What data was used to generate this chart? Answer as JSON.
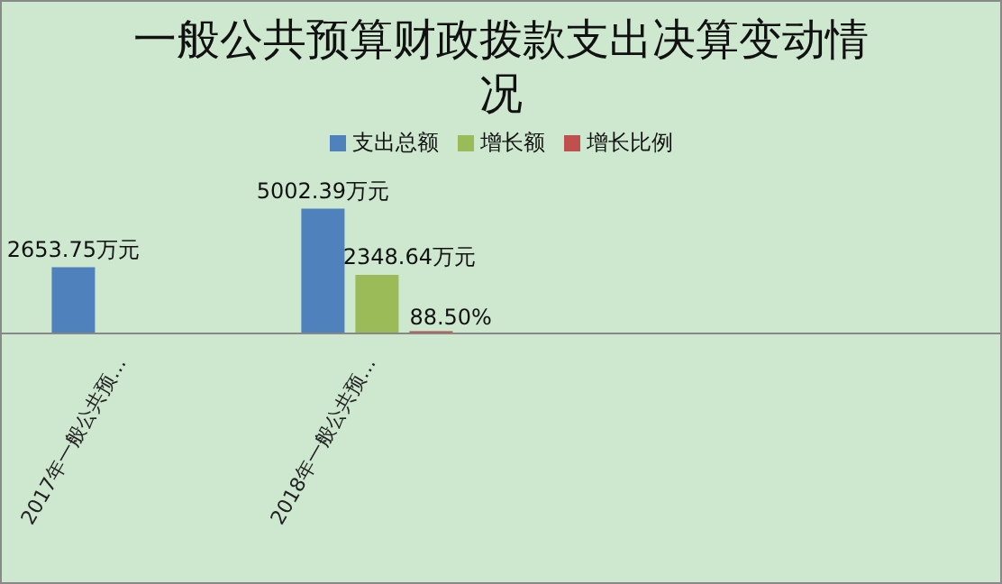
{
  "chart_data": {
    "type": "bar",
    "title": "一般公共预算财政拨款支出决算变动情况",
    "categories": [
      "2017年一般公共预…",
      "2018年一般公共预…",
      null,
      null
    ],
    "series": [
      {
        "name": "支出总额",
        "color": "#4f81bd",
        "values": [
          2653.75,
          5002.39,
          null,
          null
        ],
        "value_labels": [
          "2653.75万元",
          "5002.39万元",
          null,
          null
        ]
      },
      {
        "name": "增长额",
        "color": "#9bbb59",
        "values": [
          null,
          2348.64,
          null,
          null
        ],
        "value_labels": [
          null,
          "2348.64万元",
          null,
          null
        ]
      },
      {
        "name": "增长比例",
        "color": "#c0504d",
        "values": [
          null,
          88.5,
          null,
          null
        ],
        "value_labels": [
          null,
          "88.50%",
          null,
          null
        ]
      }
    ],
    "legend": "top",
    "grid": false
  }
}
